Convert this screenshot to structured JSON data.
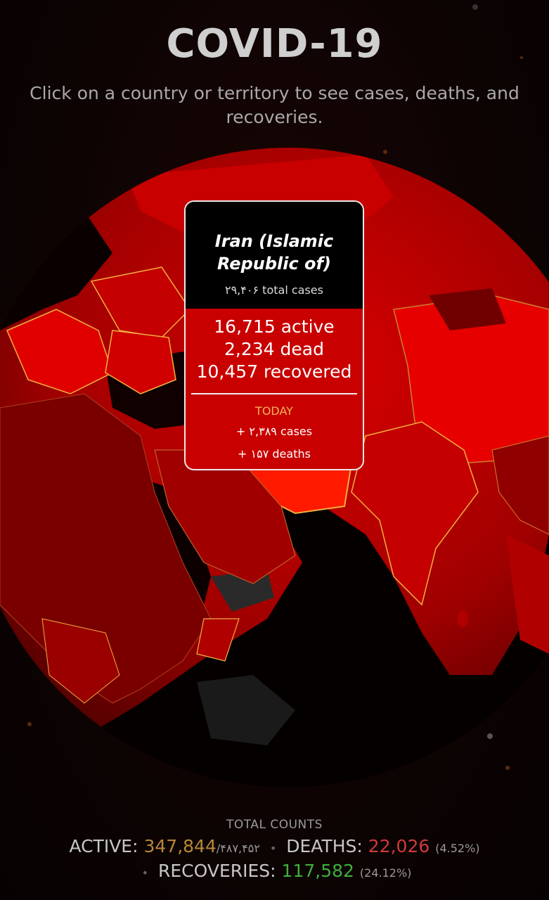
{
  "header": {
    "title": "COVID-19",
    "subtitle": "Click on a country or territory to see cases, deaths, and recoveries."
  },
  "tooltip": {
    "country": "Iran (Islamic Republic of)",
    "total_cases": "۲۹,۴۰۶ total cases",
    "active": "16,715 active",
    "dead": "2,234 dead",
    "recovered": "10,457 recovered",
    "today_label": "TODAY",
    "today_cases": "+ ۲,۳۸۹ cases",
    "today_deaths": "+ ۱۵۷ deaths"
  },
  "totals": {
    "label": "TOTAL COUNTS",
    "active_label": "ACTIVE:",
    "active_value": "347,844",
    "active_total": "/۴۸۷,۴۵۲",
    "deaths_label": "DEATHS:",
    "deaths_value": "22,026",
    "deaths_pct": "(4.52%)",
    "recoveries_label": "RECOVERIES:",
    "recoveries_value": "117,582",
    "recoveries_pct": "(24.12%)"
  },
  "colors": {
    "globe_dark": "#8a0000",
    "globe_bright": "#e00000",
    "border_highlight": "#f0b040",
    "tooltip_red": "#c90000"
  }
}
